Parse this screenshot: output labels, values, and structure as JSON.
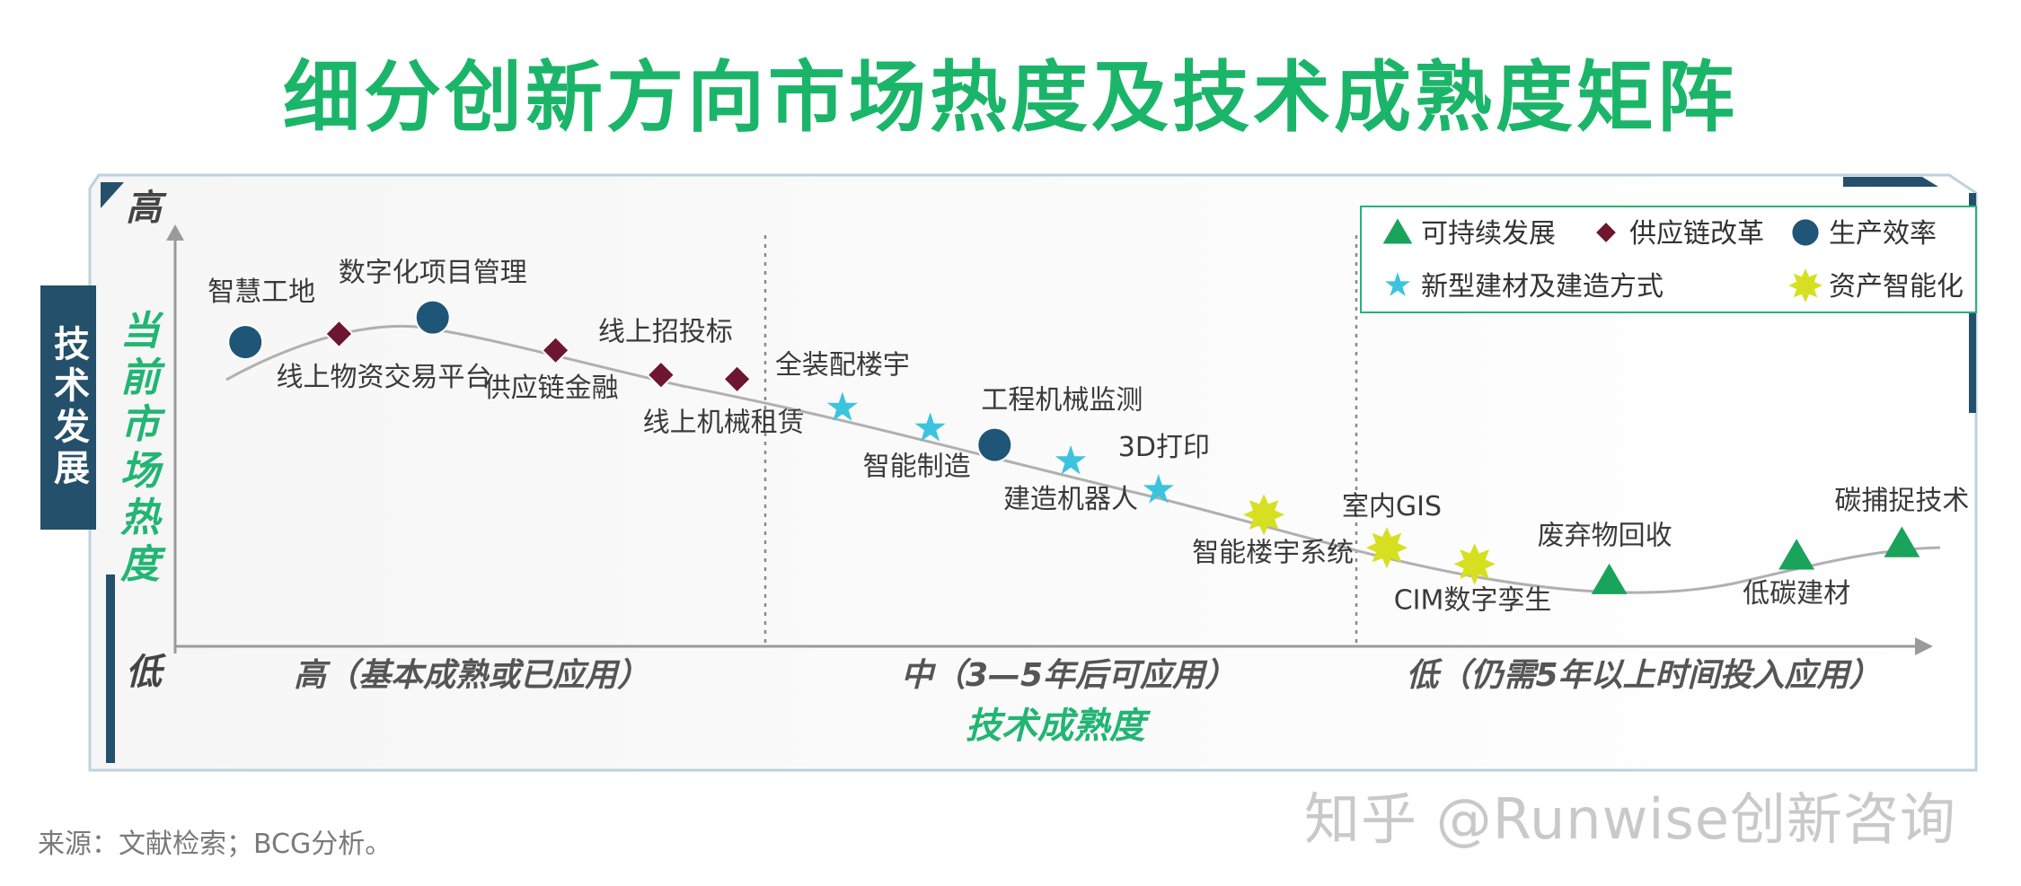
{
  "title": "细分创新方向市场热度及技术成熟度矩阵",
  "side_label": "技术发展",
  "source": "来源：文献检索；BCG分析。",
  "watermark": "知乎 @Runwise创新咨询",
  "colors": {
    "title": "#1bb569",
    "sustainable": "#1aa35a",
    "supply_chain": "#6e1630",
    "productivity": "#1f5577",
    "materials": "#3cc4de",
    "smart_assets": "#d6e020",
    "side_label_bg": "#24506b",
    "axis_title": "#22b573"
  },
  "chart_data": {
    "type": "scatter",
    "title": "细分创新方向市场热度及技术成熟度矩阵",
    "xlabel": "技术成熟度",
    "ylabel": "当前市场热度",
    "x_categories": [
      "高（基本成熟或已应用）",
      "中（3—5年后可应用）",
      "低（仍需5年以上时间投入应用）"
    ],
    "y_ticks": [
      "高",
      "低"
    ],
    "legend_position": "top-right",
    "legend": [
      {
        "name": "可持续发展",
        "marker": "triangle",
        "color": "#1aa35a"
      },
      {
        "name": "供应链改革",
        "marker": "diamond",
        "color": "#6e1630"
      },
      {
        "name": "生产效率",
        "marker": "circle",
        "color": "#1f5577"
      },
      {
        "name": "新型建材及建造方式",
        "marker": "star",
        "color": "#3cc4de"
      },
      {
        "name": "资产智能化",
        "marker": "star8",
        "color": "#d6e020"
      }
    ],
    "points": [
      {
        "label": "智慧工地",
        "series": "生产效率",
        "x": 0.12,
        "y": 0.74
      },
      {
        "label": "线上物资交易平台",
        "series": "供应链改革",
        "x": 0.28,
        "y": 0.76
      },
      {
        "label": "数字化项目管理",
        "series": "生产效率",
        "x": 0.44,
        "y": 0.8
      },
      {
        "label": "供应链金融",
        "series": "供应链改革",
        "x": 0.65,
        "y": 0.72
      },
      {
        "label": "线上招投标",
        "series": "供应链改革",
        "x": 0.83,
        "y": 0.66
      },
      {
        "label": "线上机械租赁",
        "series": "供应链改革",
        "x": 0.96,
        "y": 0.65
      },
      {
        "label": "全装配楼宇",
        "series": "新型建材及建造方式",
        "x": 1.14,
        "y": 0.58
      },
      {
        "label": "智能制造",
        "series": "新型建材及建造方式",
        "x": 1.29,
        "y": 0.53
      },
      {
        "label": "工程机械监测",
        "series": "生产效率",
        "x": 1.4,
        "y": 0.49
      },
      {
        "label": "建造机器人",
        "series": "新型建材及建造方式",
        "x": 1.53,
        "y": 0.45
      },
      {
        "label": "3D打印",
        "series": "新型建材及建造方式",
        "x": 1.68,
        "y": 0.38
      },
      {
        "label": "智能楼宇系统",
        "series": "资产智能化",
        "x": 1.86,
        "y": 0.32
      },
      {
        "label": "室内GIS",
        "series": "资产智能化",
        "x": 2.07,
        "y": 0.24
      },
      {
        "label": "CIM数字孪生",
        "series": "资产智能化",
        "x": 2.22,
        "y": 0.2
      },
      {
        "label": "废弃物回收",
        "series": "可持续发展",
        "x": 2.45,
        "y": 0.16
      },
      {
        "label": "低碳建材",
        "series": "可持续发展",
        "x": 2.77,
        "y": 0.22
      },
      {
        "label": "碳捕捉技术",
        "series": "可持续发展",
        "x": 2.95,
        "y": 0.25
      }
    ]
  }
}
